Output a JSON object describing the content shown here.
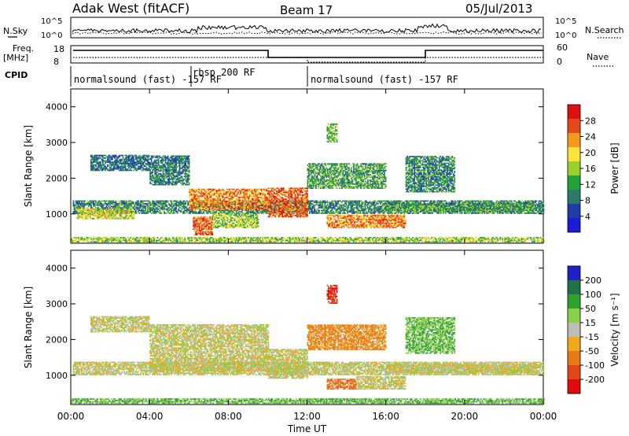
{
  "header": {
    "station": "Adak West (fitACF)",
    "beam": "Beam 17",
    "date": "05/Jul/2013"
  },
  "side_labels": {
    "nsky": "N.Sky",
    "freq": "Freq.",
    "freq_unit": "[MHz]",
    "cpid": "CPID",
    "nsearch": "N.Search",
    "nave": "Nave"
  },
  "panel_ticks": {
    "noise_left": [
      "10^5",
      "10^0"
    ],
    "noise_right": [
      "10^5",
      "10^0"
    ],
    "freq_left": [
      "18",
      "8"
    ],
    "freq_right": [
      "60",
      "0"
    ]
  },
  "cpid_segments": [
    {
      "label": "normalsound (fast) -157 RF",
      "start_h": 0,
      "end_h": 6
    },
    {
      "label": "rbsp 200 RF",
      "start_h": 6,
      "end_h": 12
    },
    {
      "label": "normalsound (fast) -157 RF",
      "start_h": 12,
      "end_h": 24
    }
  ],
  "colors": {
    "power": [
      "#1b1bd8",
      "#1f3fa8",
      "#2e7a6a",
      "#22a23a",
      "#99d02a",
      "#ffe23a",
      "#f29a1e",
      "#e5481a",
      "#e01010"
    ],
    "velocity": [
      "#2020c8",
      "#207048",
      "#30a030",
      "#88d048",
      "#bebeb8",
      "#f0a81c",
      "#e87818",
      "#e04818",
      "#e00c0c"
    ]
  },
  "chart_data": [
    {
      "type": "heatmap",
      "title": "Power",
      "xlabel": "",
      "ylabel": "Slant Range [km]",
      "xlim": [
        0,
        24
      ],
      "ylim": [
        180,
        4500
      ],
      "x_ticks": [
        "00:00",
        "04:00",
        "08:00",
        "12:00",
        "16:00",
        "20:00",
        "00:00"
      ],
      "y_ticks": [
        1000,
        2000,
        3000,
        4000
      ],
      "colorbar": {
        "label": "Power [dB]",
        "ticks": [
          4,
          8,
          12,
          16,
          20,
          24,
          28
        ],
        "range": [
          0,
          32
        ]
      },
      "echo_regions": [
        {
          "t0": 0.1,
          "t1": 24,
          "r0": 1000,
          "r1": 1350,
          "value": 10
        },
        {
          "t0": 0.3,
          "t1": 3.2,
          "r0": 850,
          "r1": 1150,
          "value": 18
        },
        {
          "t0": 1.0,
          "t1": 4.0,
          "r0": 2200,
          "r1": 2650,
          "value": 8
        },
        {
          "t0": 4.0,
          "t1": 6.0,
          "r0": 1800,
          "r1": 2600,
          "value": 9
        },
        {
          "t0": 6.0,
          "t1": 10.0,
          "r0": 1100,
          "r1": 1700,
          "value": 24
        },
        {
          "t0": 6.2,
          "t1": 7.2,
          "r0": 400,
          "r1": 900,
          "value": 26
        },
        {
          "t0": 7.2,
          "t1": 9.5,
          "r0": 600,
          "r1": 1000,
          "value": 16
        },
        {
          "t0": 10.0,
          "t1": 12.0,
          "r0": 900,
          "r1": 1700,
          "value": 26
        },
        {
          "t0": 12.0,
          "t1": 16.0,
          "r0": 1700,
          "r1": 2400,
          "value": 12
        },
        {
          "t0": 13.0,
          "t1": 17.0,
          "r0": 600,
          "r1": 950,
          "value": 24
        },
        {
          "t0": 16.0,
          "t1": 23.5,
          "r0": 1050,
          "r1": 1300,
          "value": 12
        },
        {
          "t0": 17.0,
          "t1": 19.5,
          "r0": 1600,
          "r1": 2600,
          "value": 10
        },
        {
          "t0": 13.0,
          "t1": 13.5,
          "r0": 3000,
          "r1": 3500,
          "value": 14
        },
        {
          "t0": 0.0,
          "t1": 24,
          "r0": 200,
          "r1": 330,
          "value": 16
        }
      ]
    },
    {
      "type": "heatmap",
      "title": "Velocity",
      "xlabel": "Time UT",
      "ylabel": "Slant Range [km]",
      "xlim": [
        0,
        24
      ],
      "ylim": [
        180,
        4500
      ],
      "x_ticks": [
        "00:00",
        "04:00",
        "08:00",
        "12:00",
        "16:00",
        "20:00",
        "00:00"
      ],
      "y_ticks": [
        1000,
        2000,
        3000,
        4000
      ],
      "colorbar": {
        "label": "Velocity [m s^-1]",
        "ticks": [
          200,
          100,
          50,
          15,
          -15,
          -50,
          -100,
          -200
        ]
      },
      "echo_regions": [
        {
          "t0": 0.1,
          "t1": 24,
          "r0": 1000,
          "r1": 1350,
          "value": 0
        },
        {
          "t0": 1.0,
          "t1": 4.0,
          "r0": 2200,
          "r1": 2650,
          "value": 0
        },
        {
          "t0": 4.0,
          "t1": 10.0,
          "r0": 1100,
          "r1": 2400,
          "value": 0
        },
        {
          "t0": 10.0,
          "t1": 12.0,
          "r0": 900,
          "r1": 1700,
          "value": 0
        },
        {
          "t0": 12.0,
          "t1": 16.0,
          "r0": 1700,
          "r1": 2400,
          "value": -40
        },
        {
          "t0": 13.0,
          "t1": 14.5,
          "r0": 600,
          "r1": 900,
          "value": -60
        },
        {
          "t0": 14.5,
          "t1": 17.0,
          "r0": 600,
          "r1": 950,
          "value": 0
        },
        {
          "t0": 16.0,
          "t1": 23.5,
          "r0": 1050,
          "r1": 1300,
          "value": 0
        },
        {
          "t0": 17.0,
          "t1": 19.5,
          "r0": 1600,
          "r1": 2600,
          "value": 30
        },
        {
          "t0": 13.0,
          "t1": 13.5,
          "r0": 3000,
          "r1": 3500,
          "value": -150
        },
        {
          "t0": 0.0,
          "t1": 24,
          "r0": 200,
          "r1": 330,
          "value": 30
        }
      ]
    }
  ]
}
